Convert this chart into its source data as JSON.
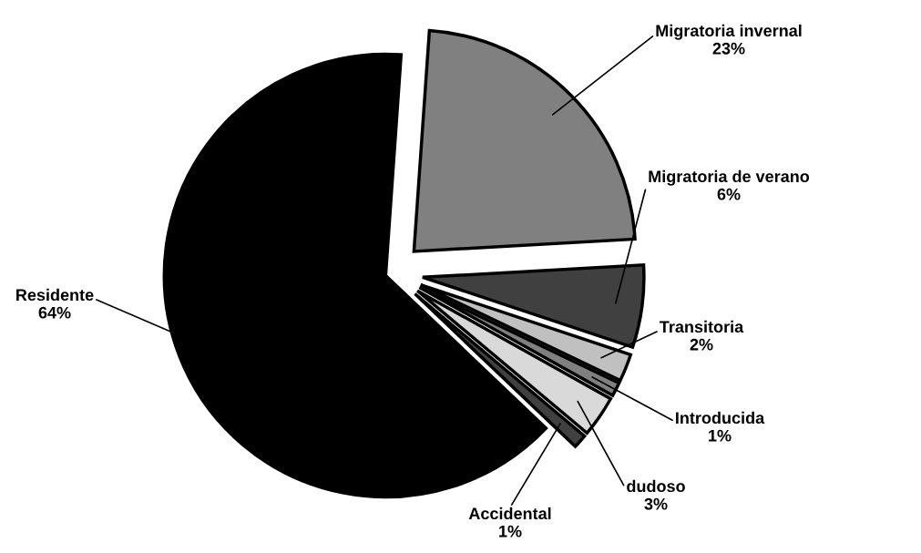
{
  "chart_data": {
    "type": "pie",
    "categories": [
      "Migratoria invernal",
      "Migratoria de verano",
      "Transitoria",
      "Introducida",
      "dudoso",
      "Accidental",
      "Residente"
    ],
    "values": [
      23,
      6,
      2,
      1,
      3,
      1,
      64
    ],
    "value_labels": [
      "23%",
      "6%",
      "2%",
      "1%",
      "3%",
      "1%",
      "64%"
    ],
    "colors": [
      "#808080",
      "#404040",
      "#c0c0c0",
      "#808080",
      "#d9d9d9",
      "#404040",
      "#000000"
    ],
    "legend": false
  }
}
